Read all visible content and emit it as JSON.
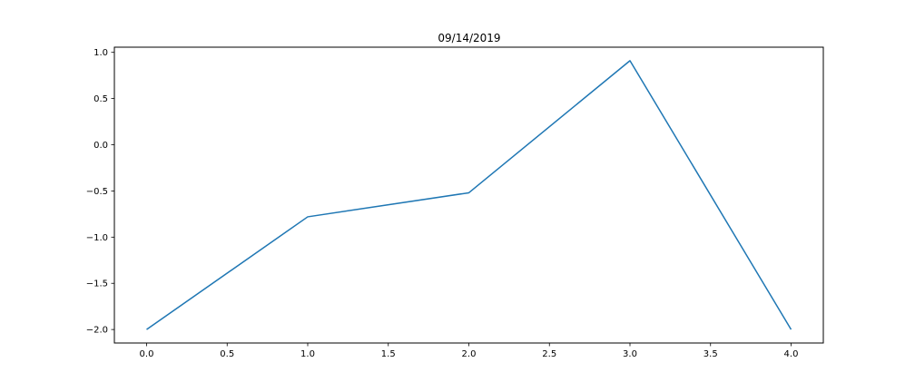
{
  "chart_data": {
    "type": "line",
    "title": "09/14/2019",
    "xlabel": "",
    "ylabel": "",
    "x": [
      0,
      1,
      2,
      3,
      4
    ],
    "series": [
      {
        "values": [
          -2.0,
          -0.78,
          -0.52,
          0.91,
          -2.0
        ],
        "color": "#1f77b4"
      }
    ],
    "xlim": [
      -0.2,
      4.2
    ],
    "ylim": [
      -2.146,
      1.056
    ],
    "xticks": [
      0.0,
      0.5,
      1.0,
      1.5,
      2.0,
      2.5,
      3.0,
      3.5,
      4.0
    ],
    "xtick_labels": [
      "0.0",
      "0.5",
      "1.0",
      "1.5",
      "2.0",
      "2.5",
      "3.0",
      "3.5",
      "4.0"
    ],
    "yticks": [
      1.0,
      0.5,
      0.0,
      -0.5,
      -1.0,
      -1.5,
      -2.0
    ],
    "ytick_labels": [
      "1.0",
      "0.5",
      "0.0",
      "−0.5",
      "−1.0",
      "−1.5",
      "−2.0"
    ],
    "grid": false,
    "legend": "none"
  }
}
